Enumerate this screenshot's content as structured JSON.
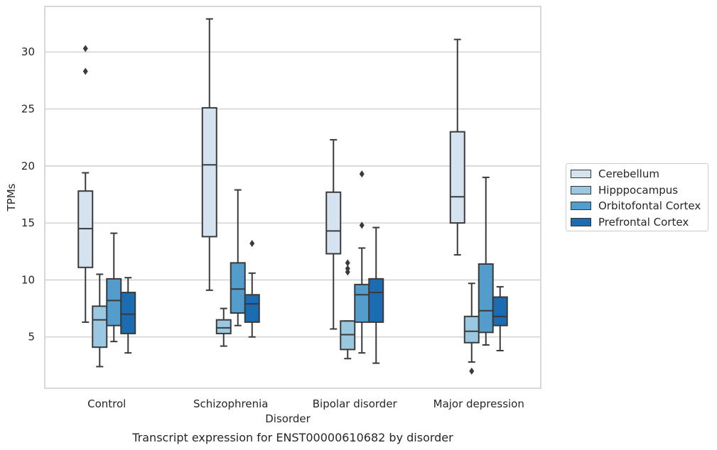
{
  "caption": "Transcript expression for ENST00000610682 by disorder",
  "chart_data": {
    "type": "boxplot",
    "xlabel": "Disorder",
    "ylabel": "TPMs",
    "ylim": [
      0.5,
      34
    ],
    "yticks": [
      5,
      10,
      15,
      20,
      25,
      30
    ],
    "grid": "horizontal",
    "legend_position": "right",
    "categories": [
      "Control",
      "Schizophrenia",
      "Bipolar disorder",
      "Major depression"
    ],
    "series": [
      {
        "name": "Cerebellum",
        "color": "#d5e3f1",
        "boxes": [
          {
            "whisker_low": 6.3,
            "q1": 11.1,
            "median": 14.5,
            "q3": 17.8,
            "whisker_high": 19.4,
            "outliers": [
              28.3,
              30.3
            ]
          },
          {
            "whisker_low": 9.1,
            "q1": 13.8,
            "median": 20.1,
            "q3": 25.1,
            "whisker_high": 32.9,
            "outliers": []
          },
          {
            "whisker_low": 5.7,
            "q1": 12.3,
            "median": 14.3,
            "q3": 17.7,
            "whisker_high": 22.3,
            "outliers": []
          },
          {
            "whisker_low": 12.2,
            "q1": 15.0,
            "median": 17.3,
            "q3": 23.0,
            "whisker_high": 31.1,
            "outliers": []
          }
        ]
      },
      {
        "name": "Hipppocampus",
        "color": "#9ac8e0",
        "boxes": [
          {
            "whisker_low": 2.4,
            "q1": 4.1,
            "median": 6.5,
            "q3": 7.7,
            "whisker_high": 10.5,
            "outliers": []
          },
          {
            "whisker_low": 4.2,
            "q1": 5.3,
            "median": 5.8,
            "q3": 6.5,
            "whisker_high": 7.5,
            "outliers": []
          },
          {
            "whisker_low": 3.1,
            "q1": 3.9,
            "median": 5.2,
            "q3": 6.4,
            "whisker_high": 6.4,
            "outliers": [
              10.7,
              11.0,
              11.5
            ]
          },
          {
            "whisker_low": 2.8,
            "q1": 4.5,
            "median": 5.5,
            "q3": 6.8,
            "whisker_high": 9.7,
            "outliers": [
              2.0
            ]
          }
        ]
      },
      {
        "name": "Orbitofontal Cortex",
        "color": "#529dcc",
        "boxes": [
          {
            "whisker_low": 4.6,
            "q1": 6.0,
            "median": 8.2,
            "q3": 10.1,
            "whisker_high": 14.1,
            "outliers": []
          },
          {
            "whisker_low": 6.0,
            "q1": 7.1,
            "median": 9.2,
            "q3": 11.5,
            "whisker_high": 17.9,
            "outliers": []
          },
          {
            "whisker_low": 3.6,
            "q1": 6.3,
            "median": 8.7,
            "q3": 9.6,
            "whisker_high": 12.8,
            "outliers": [
              14.8,
              19.3
            ]
          },
          {
            "whisker_low": 4.3,
            "q1": 5.4,
            "median": 7.3,
            "q3": 11.4,
            "whisker_high": 19.0,
            "outliers": []
          }
        ]
      },
      {
        "name": "Prefrontal Cortex",
        "color": "#1c6cb1",
        "boxes": [
          {
            "whisker_low": 3.6,
            "q1": 5.3,
            "median": 7.0,
            "q3": 8.9,
            "whisker_high": 10.2,
            "outliers": []
          },
          {
            "whisker_low": 5.0,
            "q1": 6.3,
            "median": 7.9,
            "q3": 8.7,
            "whisker_high": 10.6,
            "outliers": [
              13.2
            ]
          },
          {
            "whisker_low": 2.7,
            "q1": 6.3,
            "median": 8.9,
            "q3": 10.1,
            "whisker_high": 14.6,
            "outliers": []
          },
          {
            "whisker_low": 3.8,
            "q1": 6.0,
            "median": 6.8,
            "q3": 8.5,
            "whisker_high": 9.4,
            "outliers": []
          }
        ]
      }
    ]
  }
}
